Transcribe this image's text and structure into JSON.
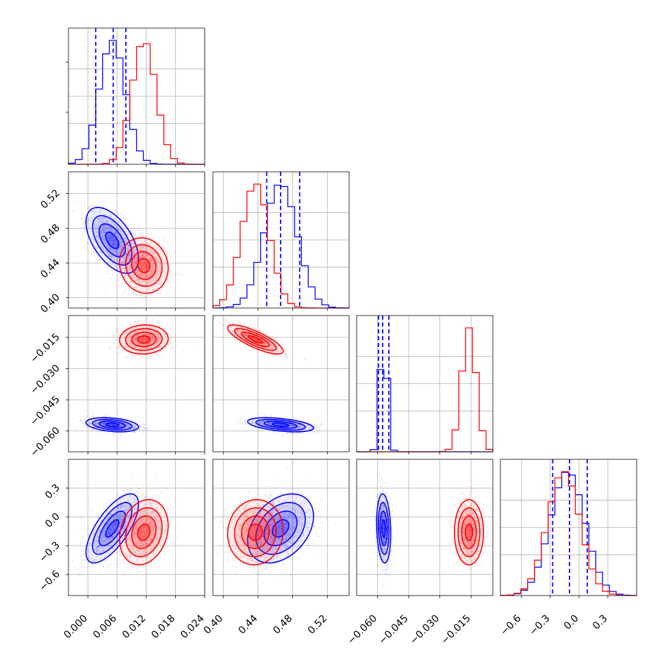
{
  "colors": {
    "blue": "#0000ff",
    "red": "#ff0000",
    "grid": "#b0b0b0"
  },
  "chart_data": {
    "type": "corner",
    "title": "",
    "grid": true,
    "params": [
      {
        "range": [
          -0.004,
          0.024
        ],
        "ticks": [
          0.0,
          0.006,
          0.012,
          0.018,
          0.024
        ],
        "tick_labels": [
          "0.000",
          "0.006",
          "0.012",
          "0.018",
          "0.024"
        ]
      },
      {
        "range": [
          0.388,
          0.545
        ],
        "ticks": [
          0.4,
          0.44,
          0.48,
          0.52
        ],
        "tick_labels": [
          "0.40",
          "0.44",
          "0.48",
          "0.52"
        ]
      },
      {
        "range": [
          -0.07,
          -0.0045
        ],
        "ticks": [
          -0.06,
          -0.045,
          -0.03,
          -0.015
        ],
        "tick_labels": [
          "−0.060",
          "−0.045",
          "−0.030",
          "−0.015"
        ]
      },
      {
        "range": [
          -0.82,
          0.6
        ],
        "ticks": [
          -0.6,
          -0.3,
          0.0,
          0.3
        ],
        "tick_labels": [
          "−0.6",
          "−0.3",
          "0.0",
          "0.3"
        ]
      }
    ],
    "series": [
      {
        "color": "blue",
        "mean": [
          0.005,
          0.466,
          -0.057,
          -0.12
        ],
        "sd": [
          0.0027,
          0.019,
          0.0017,
          0.18
        ],
        "rho": [
          [
            1,
            -0.55,
            -0.3,
            0.7
          ],
          [
            -0.55,
            1,
            -0.45,
            0.35
          ],
          [
            -0.3,
            -0.45,
            1,
            -0.15
          ],
          [
            0.7,
            0.35,
            -0.15,
            1
          ]
        ],
        "quantiles": [
          [
            0.0016,
            0.0052,
            0.0078
          ],
          [
            0.45,
            0.466,
            0.488
          ],
          [
            -0.0595,
            -0.0575,
            -0.0545
          ],
          [
            -0.275,
            -0.1,
            0.085
          ]
        ]
      },
      {
        "color": "red",
        "mean": [
          0.0115,
          0.437,
          -0.016,
          -0.16
        ],
        "sd": [
          0.0025,
          0.016,
          0.0035,
          0.17
        ],
        "rho": [
          [
            1,
            -0.1,
            0.05,
            0.2
          ],
          [
            -0.1,
            1,
            -0.8,
            0.05
          ],
          [
            0.05,
            -0.8,
            1,
            0.0
          ],
          [
            0.2,
            0.05,
            0.0,
            1
          ]
        ]
      }
    ]
  }
}
